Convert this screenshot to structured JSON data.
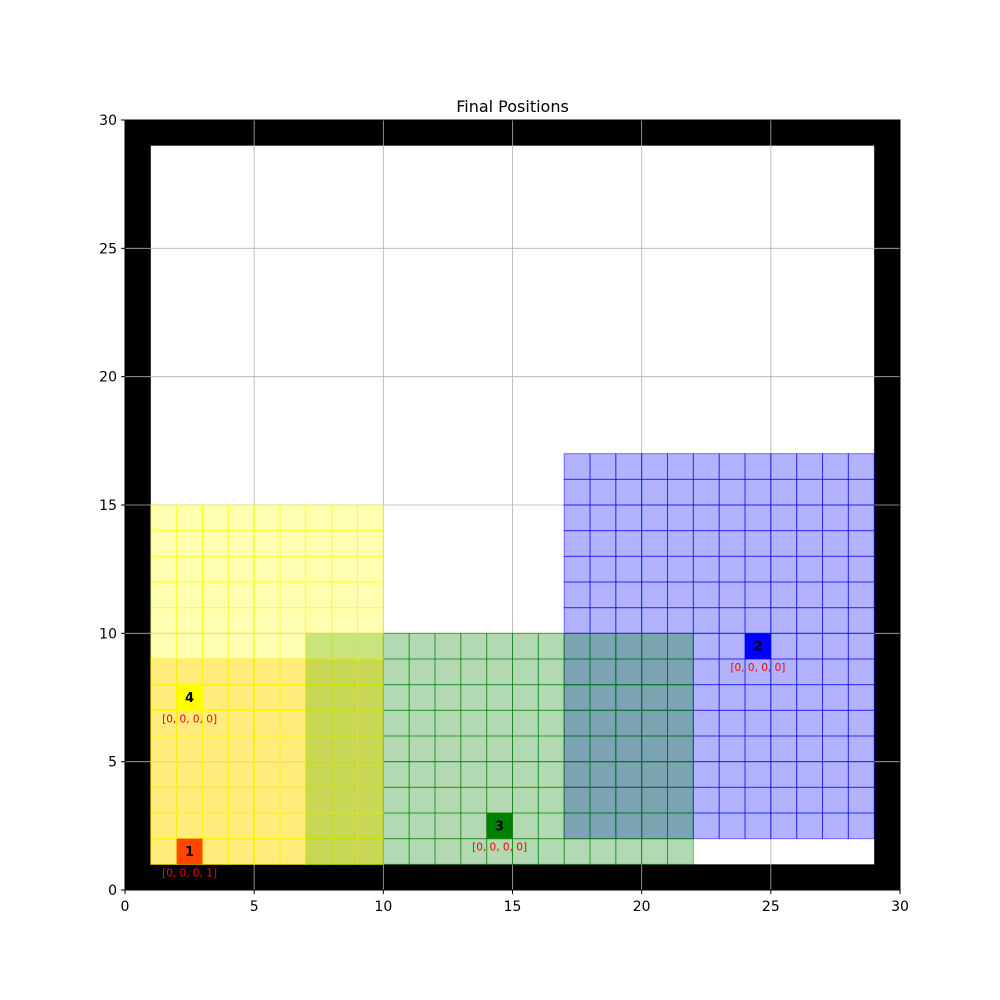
{
  "chart_data": {
    "type": "grid-world",
    "title": "Final Positions",
    "xlim": [
      0,
      30
    ],
    "ylim": [
      0,
      30
    ],
    "xticks": [
      0,
      5,
      10,
      15,
      20,
      25,
      30
    ],
    "yticks": [
      0,
      5,
      10,
      15,
      20,
      25,
      30
    ],
    "grid": true,
    "wall_color": "#000000",
    "walls": [
      {
        "x0": 0,
        "x1": 30,
        "y0": 0,
        "y1": 1
      },
      {
        "x0": 0,
        "x1": 30,
        "y0": 29,
        "y1": 30
      },
      {
        "x0": 0,
        "x1": 1,
        "y0": 0,
        "y1": 30
      },
      {
        "x0": 29,
        "x1": 30,
        "y0": 0,
        "y1": 30
      }
    ],
    "regions": [
      {
        "agent": "1",
        "color": "#ffa500",
        "x0": 1,
        "x1": 10,
        "y0": 1,
        "y1": 9
      },
      {
        "agent": "2",
        "color": "#0000ff",
        "x0": 17,
        "x1": 29,
        "y0": 2,
        "y1": 17
      },
      {
        "agent": "3",
        "color": "#008000",
        "x0": 7,
        "x1": 22,
        "y0": 1,
        "y1": 10
      },
      {
        "agent": "4",
        "color": "#ffff00",
        "x0": 1,
        "x1": 10,
        "y0": 1,
        "y1": 15
      }
    ],
    "agents": [
      {
        "id": "1",
        "x": 2,
        "y": 1,
        "color": "#ff4500",
        "state": "[0, 0, 0, 1]"
      },
      {
        "id": "2",
        "x": 24,
        "y": 9,
        "color": "#0000ff",
        "state": "[0, 0, 0, 0]"
      },
      {
        "id": "3",
        "x": 14,
        "y": 2,
        "color": "#008000",
        "state": "[0, 0, 0, 0]"
      },
      {
        "id": "4",
        "x": 2,
        "y": 7,
        "color": "#ffff00",
        "state": "[0, 0, 0, 0]"
      }
    ]
  }
}
